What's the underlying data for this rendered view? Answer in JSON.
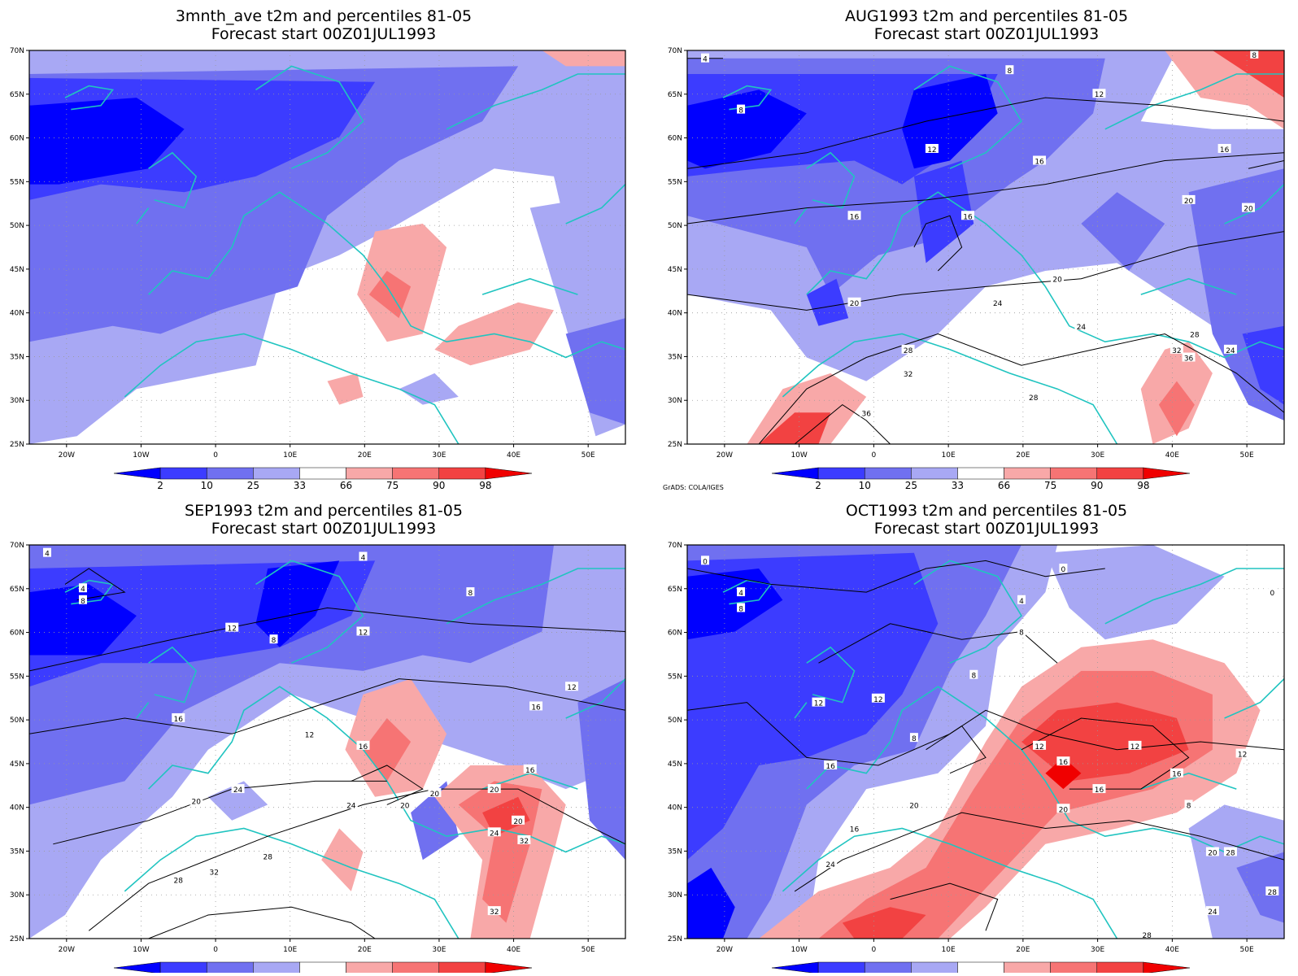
{
  "colors": {
    "p2": "#0000ff",
    "p10": "#3c3cff",
    "p25": "#7070f0",
    "p33": "#a8a8f4",
    "p66": "#f8a8a8",
    "p75": "#f67474",
    "p90": "#f24242",
    "p98": "#f00000",
    "coast": "#20c4c0",
    "contour": "#000000"
  },
  "x_ticks": [
    "20W",
    "10W",
    "0",
    "10E",
    "20E",
    "30E",
    "40E",
    "50E"
  ],
  "y_ticks": [
    "70N",
    "65N",
    "60N",
    "55N",
    "50N",
    "45N",
    "40N",
    "35N",
    "30N",
    "25N"
  ],
  "colorbar_labels": [
    "2",
    "10",
    "25",
    "33",
    "66",
    "75",
    "90",
    "98"
  ],
  "credit": "GrADS: COLA/IGES",
  "panels": [
    {
      "title": "3mnth_ave t2m and percentiles 81-05",
      "subtitle": "Forecast start 00Z01JUL1993",
      "contour_labels": []
    },
    {
      "title": "AUG1993 t2m and percentiles 81-05",
      "subtitle": "Forecast start 00Z01JUL1993",
      "contour_labels": [
        "4",
        "8",
        "8",
        "8",
        "12",
        "12",
        "16",
        "16",
        "16",
        "16",
        "20",
        "20",
        "20",
        "20",
        "24",
        "24",
        "24",
        "28",
        "28",
        "28",
        "32",
        "32",
        "36",
        "36"
      ]
    },
    {
      "title": "SEP1993 t2m and percentiles 81-05",
      "subtitle": "Forecast start 00Z01JUL1993",
      "contour_labels": [
        "4",
        "4",
        "4",
        "8",
        "8",
        "8",
        "12",
        "12",
        "12",
        "12",
        "16",
        "16",
        "16",
        "16",
        "20",
        "20",
        "20",
        "20",
        "20",
        "24",
        "24",
        "24",
        "28",
        "28",
        "32",
        "32",
        "32"
      ]
    },
    {
      "title": "OCT1993 t2m and percentiles 81-05",
      "subtitle": "Forecast start 00Z01JUL1993",
      "contour_labels": [
        "0",
        "0",
        "0",
        "4",
        "4",
        "8",
        "8",
        "8",
        "8",
        "8",
        "12",
        "12",
        "12",
        "12",
        "12",
        "16",
        "16",
        "16",
        "16",
        "16",
        "20",
        "20",
        "20",
        "24",
        "24",
        "28",
        "28",
        "28"
      ]
    }
  ]
}
